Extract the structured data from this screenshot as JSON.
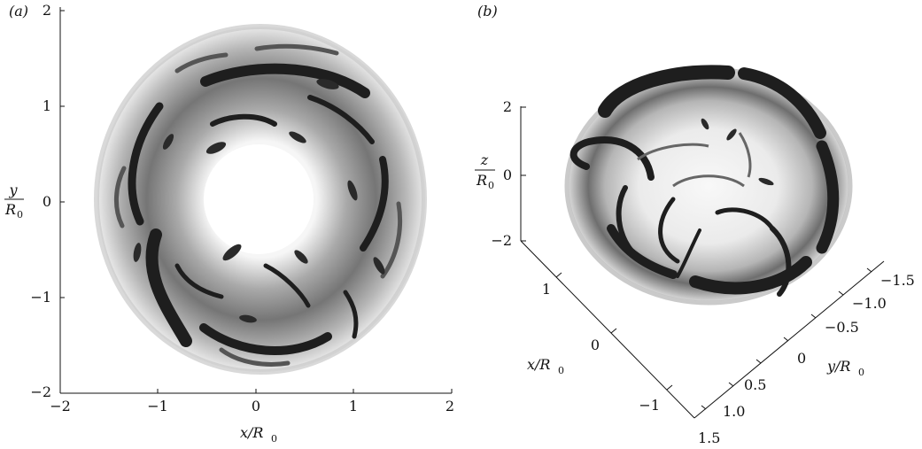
{
  "panel_a": {
    "label": "(a)",
    "xlabel": "x/R",
    "xlabel_sub": "0",
    "ylabel_num": "y",
    "ylabel_den": "R",
    "ylabel_sub": "0",
    "xticks": [
      "−2",
      "−1",
      "0",
      "1",
      "2"
    ],
    "yticks": [
      "2",
      "1",
      "0",
      "−1",
      "−2"
    ]
  },
  "panel_b": {
    "label": "(b)",
    "zlabel_num": "z",
    "zlabel_den": "R",
    "zlabel_sub": "0",
    "zticks": [
      "2",
      "0",
      "−2"
    ],
    "xlabel": "x/R",
    "xlabel_sub": "0",
    "xticks": [
      "1",
      "0",
      "−1"
    ],
    "ylabel": "y/R",
    "ylabel_sub": "0",
    "yticks": [
      "−1.5",
      "−1.0",
      "−0.5",
      "0",
      "0.5",
      "1.0",
      "1.5"
    ]
  }
}
